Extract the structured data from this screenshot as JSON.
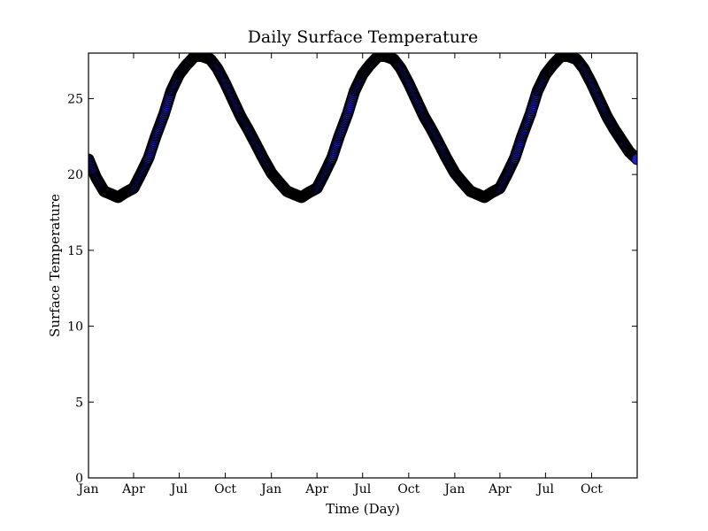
{
  "chart_data": {
    "type": "scatter",
    "title": "Daily Surface Temperature",
    "xlabel": "Time (Day)",
    "ylabel": "Surface Temperature",
    "xlim": [
      "2015-01-01",
      "2017-12-31"
    ],
    "ylim": [
      0,
      28
    ],
    "yticks": [
      0,
      5,
      10,
      15,
      20,
      25
    ],
    "xticks": [
      {
        "date": "2015-01-01",
        "label": "Jan"
      },
      {
        "date": "2015-04-01",
        "label": "Apr"
      },
      {
        "date": "2015-07-01",
        "label": "Jul"
      },
      {
        "date": "2015-10-01",
        "label": "Oct"
      },
      {
        "date": "2016-01-01",
        "label": "Jan"
      },
      {
        "date": "2016-04-01",
        "label": "Apr"
      },
      {
        "date": "2016-07-01",
        "label": "Jul"
      },
      {
        "date": "2016-10-01",
        "label": "Oct"
      },
      {
        "date": "2017-01-01",
        "label": "Jan"
      },
      {
        "date": "2017-04-01",
        "label": "Apr"
      },
      {
        "date": "2017-07-01",
        "label": "Jul"
      },
      {
        "date": "2017-10-01",
        "label": "Oct"
      }
    ],
    "grid": false,
    "legend": "none",
    "marker_fill": "#1f1fcc",
    "marker_edge": "#000000",
    "series": [
      {
        "x": [
          "2015-01-01",
          "2015-01-16",
          "2015-02-01",
          "2015-02-15",
          "2015-03-01",
          "2015-03-15",
          "2015-04-01",
          "2015-04-15",
          "2015-05-01",
          "2015-05-15",
          "2015-06-01",
          "2015-06-15",
          "2015-07-01",
          "2015-07-15",
          "2015-08-01",
          "2015-08-15",
          "2015-09-01",
          "2015-09-15",
          "2015-10-01",
          "2015-10-15",
          "2015-11-01",
          "2015-11-15",
          "2015-12-01",
          "2015-12-15",
          "2016-01-01",
          "2016-01-16",
          "2016-02-01",
          "2016-02-15",
          "2016-03-01",
          "2016-03-15",
          "2016-04-01",
          "2016-04-15",
          "2016-05-01",
          "2016-05-15",
          "2016-06-01",
          "2016-06-15",
          "2016-07-01",
          "2016-07-15",
          "2016-08-01",
          "2016-08-15",
          "2016-09-01",
          "2016-09-15",
          "2016-10-01",
          "2016-10-15",
          "2016-11-01",
          "2016-11-15",
          "2016-12-01",
          "2016-12-15",
          "2017-01-01",
          "2017-01-16",
          "2017-02-01",
          "2017-02-15",
          "2017-03-01",
          "2017-03-15",
          "2017-04-01",
          "2017-04-15",
          "2017-05-01",
          "2017-05-15",
          "2017-06-01",
          "2017-06-15",
          "2017-07-01",
          "2017-07-15",
          "2017-08-01",
          "2017-08-15",
          "2017-09-01",
          "2017-09-15",
          "2017-10-01",
          "2017-10-15",
          "2017-11-01",
          "2017-11-15",
          "2017-12-01",
          "2017-12-15",
          "2017-12-31"
        ],
        "values": [
          21.0,
          19.8,
          18.9,
          18.7,
          18.5,
          18.8,
          19.1,
          20.0,
          21.1,
          22.5,
          24.0,
          25.5,
          26.6,
          27.2,
          27.8,
          27.8,
          27.6,
          27.0,
          26.0,
          25.0,
          23.8,
          23.0,
          22.0,
          21.1,
          20.1,
          19.5,
          18.9,
          18.7,
          18.5,
          18.8,
          19.1,
          20.0,
          21.1,
          22.5,
          24.0,
          25.5,
          26.6,
          27.2,
          27.8,
          27.8,
          27.6,
          27.0,
          26.0,
          25.0,
          23.8,
          23.0,
          22.0,
          21.1,
          20.1,
          19.5,
          18.9,
          18.7,
          18.5,
          18.8,
          19.1,
          20.0,
          21.1,
          22.5,
          24.0,
          25.5,
          26.6,
          27.2,
          27.8,
          27.8,
          27.6,
          27.0,
          26.0,
          25.0,
          23.8,
          23.0,
          22.2,
          21.5,
          21.0
        ]
      }
    ]
  }
}
